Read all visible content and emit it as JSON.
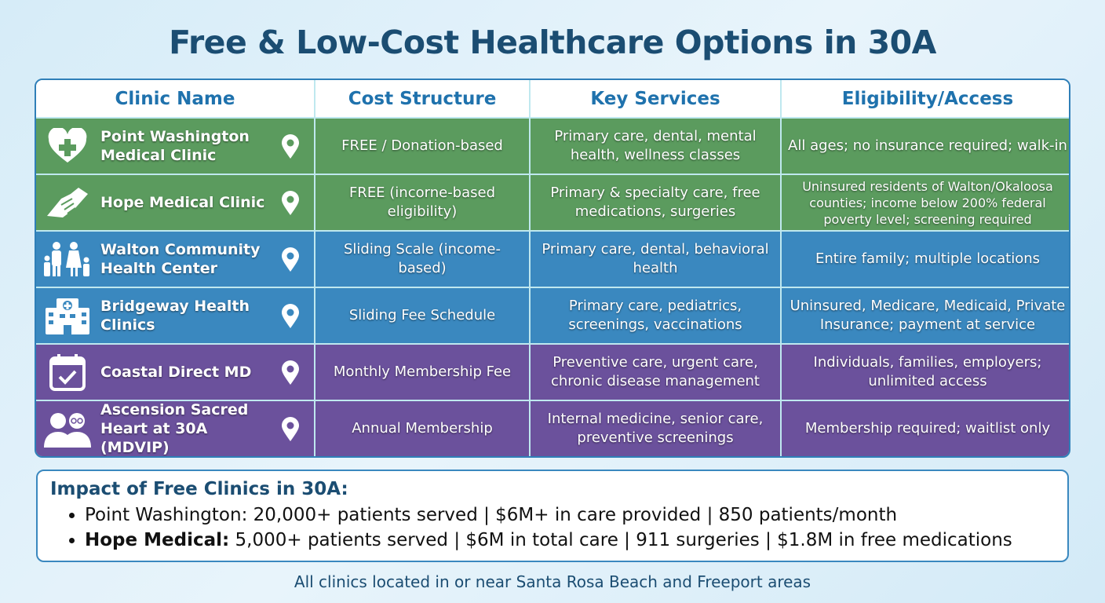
{
  "title": "Free & Low-Cost Healthcare Options in 30A",
  "colors": {
    "free": "#5b9b5e",
    "sliding": "#3a88bf",
    "membership": "#6b519c",
    "title": "#1b4d72",
    "header": "#1f72ad"
  },
  "headers": [
    "Clinic Name",
    "Cost Structure",
    "Key Services",
    "Eligibility/Access"
  ],
  "rows": [
    {
      "name": "Point Washington Medical Clinic",
      "icon": "heart-plus-icon",
      "color": "green",
      "cost": "FREE / Donation-based",
      "services": "Primary care, dental, mental health, wellness classes",
      "eligibility": "All ages; no insurance required; walk-in"
    },
    {
      "name": "Hope Medical Clinic",
      "icon": "handshake-icon",
      "color": "green",
      "cost": "FREE (incorne-based eligibility)",
      "services": "Primary & specialty care, free medications, surgeries",
      "eligibility": "Uninsured residents of Walton/Okaloosa counties; income below 200% federal poverty level; screening required"
    },
    {
      "name": "Walton Community Health Center",
      "icon": "family-icon",
      "color": "blue",
      "cost": "Sliding Scale (income-based)",
      "services": "Primary care, dental, behavioral health",
      "eligibility": "Entire family; multiple locations"
    },
    {
      "name": "Bridgeway Health Clinics",
      "icon": "hospital-icon",
      "color": "blue",
      "cost": "Sliding Fee Schedule",
      "services": "Primary care, pediatrics, screenings, vaccinations",
      "eligibility": "Uninsured, Medicare, Medicaid, Private Insurance; payment at service"
    },
    {
      "name": "Coastal Direct MD",
      "icon": "calendar-check-icon",
      "color": "purple",
      "cost": "Monthly Membership Fee",
      "services": "Preventive care, urgent care, chronic disease management",
      "eligibility": "Individuals, families, employers; unlimited access"
    },
    {
      "name": "Ascension Sacred Heart at 30A (MDVIP)",
      "icon": "seniors-icon",
      "color": "purple",
      "cost": "Annual Membership",
      "services": "Internal medicine, senior care, preventive screenings",
      "eligibility": "Membership required; waitlist only"
    }
  ],
  "impact": {
    "heading": "Impact of Free Clinics in 30A:",
    "items": [
      {
        "label": "",
        "text": "Point Washington: 20,000+ patients served | $6M+ in care provided | 850 patients/month"
      },
      {
        "label": "Hope Medical:",
        "text": " 5,000+ patients served | $6M in total care | 911 surgeries | $1.8M in free medications"
      }
    ]
  },
  "footer": "All clinics located in or near Santa Rosa Beach and Freeport areas"
}
